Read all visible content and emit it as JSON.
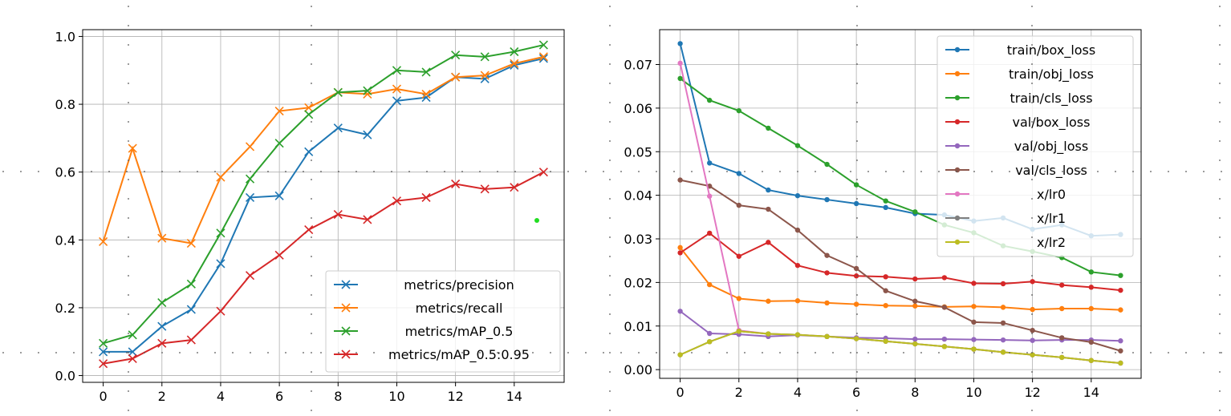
{
  "chart_data": [
    {
      "type": "line",
      "xlim": [
        -0.7,
        15.7
      ],
      "ylim": [
        -0.02,
        1.02
      ],
      "xticks": [
        0,
        2,
        4,
        6,
        8,
        10,
        12,
        14
      ],
      "yticks": [
        0.0,
        0.2,
        0.4,
        0.6,
        0.8,
        1.0
      ],
      "ytick_labels": [
        "0.0",
        "0.2",
        "0.4",
        "0.6",
        "0.8",
        "1.0"
      ],
      "grid": true,
      "marker": "x",
      "legend_position": "lower-right",
      "x": [
        0,
        1,
        2,
        3,
        4,
        5,
        6,
        7,
        8,
        9,
        10,
        11,
        12,
        13,
        14,
        15
      ],
      "series": [
        {
          "name": "metrics/precision",
          "color": "#1f77b4",
          "values": [
            0.07,
            0.07,
            0.145,
            0.195,
            0.33,
            0.525,
            0.53,
            0.66,
            0.73,
            0.71,
            0.81,
            0.82,
            0.88,
            0.875,
            0.915,
            0.935
          ]
        },
        {
          "name": "metrics/recall",
          "color": "#ff7f0e",
          "values": [
            0.395,
            0.67,
            0.405,
            0.39,
            0.585,
            0.675,
            0.78,
            0.79,
            0.835,
            0.83,
            0.845,
            0.83,
            0.88,
            0.885,
            0.92,
            0.94
          ]
        },
        {
          "name": "metrics/mAP_0.5",
          "color": "#2ca02c",
          "values": [
            0.095,
            0.12,
            0.215,
            0.27,
            0.42,
            0.58,
            0.685,
            0.77,
            0.835,
            0.84,
            0.9,
            0.895,
            0.945,
            0.94,
            0.955,
            0.975
          ]
        },
        {
          "name": "metrics/mAP_0.5:0.95",
          "color": "#d62728",
          "values": [
            0.035,
            0.05,
            0.095,
            0.105,
            0.19,
            0.295,
            0.355,
            0.43,
            0.475,
            0.46,
            0.515,
            0.525,
            0.565,
            0.55,
            0.555,
            0.6
          ]
        }
      ]
    },
    {
      "type": "line",
      "xlim": [
        -0.7,
        15.7
      ],
      "ylim": [
        -0.002,
        0.078
      ],
      "xticks": [
        0,
        2,
        4,
        6,
        8,
        10,
        12,
        14
      ],
      "yticks": [
        0.0,
        0.01,
        0.02,
        0.03,
        0.04,
        0.05,
        0.06,
        0.07
      ],
      "ytick_labels": [
        "0.00",
        "0.01",
        "0.02",
        "0.03",
        "0.04",
        "0.05",
        "0.06",
        "0.07"
      ],
      "grid": true,
      "marker": "dot",
      "legend_position": "upper-right",
      "x": [
        0,
        1,
        2,
        3,
        4,
        5,
        6,
        7,
        8,
        9,
        10,
        11,
        12,
        13,
        14,
        15
      ],
      "series": [
        {
          "name": "train/box_loss",
          "color": "#1f77b4",
          "values": [
            0.0748,
            0.0474,
            0.045,
            0.0412,
            0.0399,
            0.039,
            0.0381,
            0.0372,
            0.0358,
            0.0355,
            0.0341,
            0.0348,
            0.0322,
            0.0332,
            0.0307,
            0.031
          ]
        },
        {
          "name": "train/obj_loss",
          "color": "#ff7f0e",
          "values": [
            0.028,
            0.0195,
            0.0163,
            0.0157,
            0.0158,
            0.0153,
            0.015,
            0.0147,
            0.0146,
            0.0144,
            0.0145,
            0.0143,
            0.0138,
            0.014,
            0.014,
            0.0137
          ]
        },
        {
          "name": "train/cls_loss",
          "color": "#2ca02c",
          "values": [
            0.0668,
            0.0618,
            0.0594,
            0.0554,
            0.0514,
            0.0471,
            0.0424,
            0.0387,
            0.0362,
            0.0332,
            0.0314,
            0.0284,
            0.0271,
            0.0257,
            0.0224,
            0.0216
          ]
        },
        {
          "name": "val/box_loss",
          "color": "#d62728",
          "values": [
            0.0268,
            0.0313,
            0.026,
            0.0292,
            0.0239,
            0.0222,
            0.0215,
            0.0213,
            0.0208,
            0.0211,
            0.0198,
            0.0197,
            0.0202,
            0.0194,
            0.0189,
            0.0182
          ]
        },
        {
          "name": "val/obj_loss",
          "color": "#9467bd",
          "values": [
            0.0134,
            0.0083,
            0.0081,
            0.0076,
            0.0079,
            0.0076,
            0.0073,
            0.0072,
            0.007,
            0.007,
            0.0069,
            0.0068,
            0.0067,
            0.0068,
            0.0068,
            0.0066
          ]
        },
        {
          "name": "val/cls_loss",
          "color": "#8c564b",
          "values": [
            0.0435,
            0.0421,
            0.0377,
            0.0368,
            0.032,
            0.0262,
            0.0232,
            0.0181,
            0.0157,
            0.0143,
            0.0109,
            0.0107,
            0.009,
            0.0073,
            0.0063,
            0.0043
          ]
        },
        {
          "name": "x/lr0",
          "color": "#e377c2",
          "values": [
            0.0703,
            0.0398,
            0.009,
            0.0082,
            0.008,
            0.0076,
            0.0071,
            0.0065,
            0.0059,
            0.0053,
            0.0047,
            0.004,
            0.0034,
            0.0028,
            0.0021,
            0.0015
          ]
        },
        {
          "name": "x/lr1",
          "color": "#7f7f7f",
          "values": [
            0.0034,
            0.0064,
            0.0088,
            0.0082,
            0.008,
            0.0076,
            0.0071,
            0.0065,
            0.0059,
            0.0053,
            0.0047,
            0.004,
            0.0034,
            0.0028,
            0.0021,
            0.0015
          ]
        },
        {
          "name": "x/lr2",
          "color": "#bcbd22",
          "values": [
            0.0034,
            0.0064,
            0.0088,
            0.0082,
            0.008,
            0.0076,
            0.0071,
            0.0065,
            0.0059,
            0.0053,
            0.0047,
            0.004,
            0.0034,
            0.0028,
            0.0021,
            0.0015
          ]
        }
      ]
    }
  ]
}
